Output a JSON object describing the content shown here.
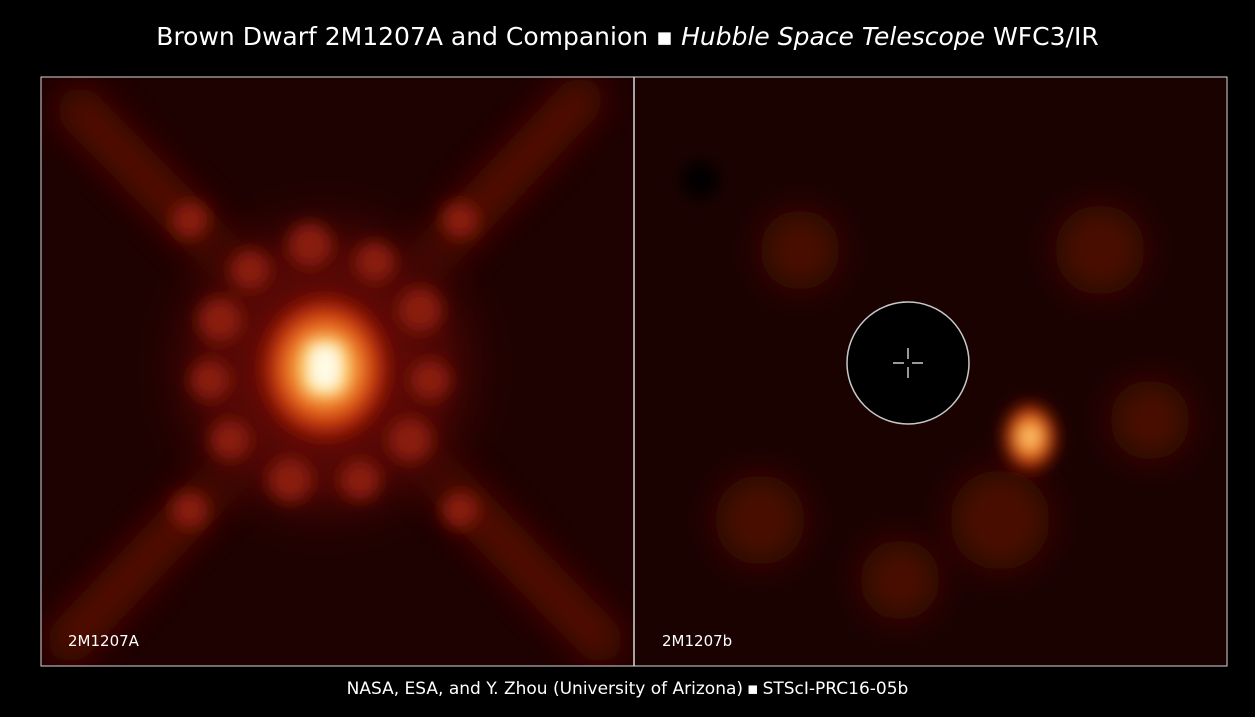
{
  "header": {
    "title": "Brown Dwarf 2M1207A and Companion",
    "separator": "▪",
    "instrument": "Hubble Space Telescope",
    "camera": "WFC3/IR"
  },
  "panels": [
    {
      "label": "2M1207A"
    },
    {
      "label": "2M1207b"
    }
  ],
  "footer": {
    "credit": "NASA, ESA, and Y. Zhou (University of Arizona)",
    "separator": "▪",
    "id": "STScI-PRC16-05b"
  }
}
